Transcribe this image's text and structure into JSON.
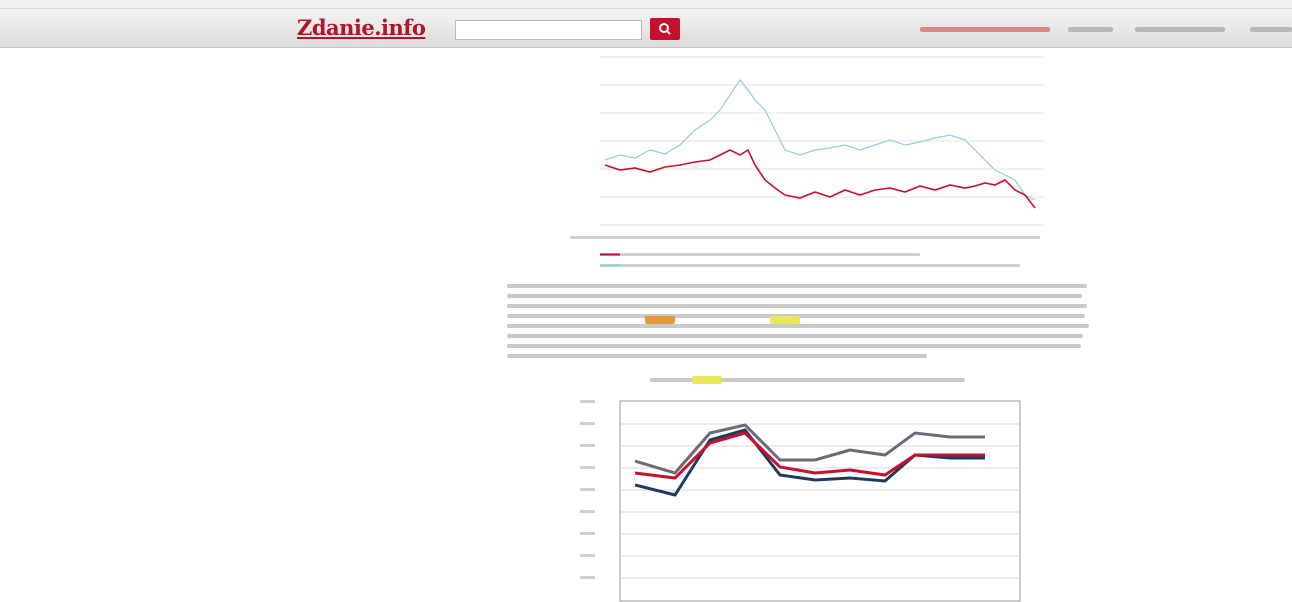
{
  "header": {
    "logo": "Zdanie.info"
  }
}
